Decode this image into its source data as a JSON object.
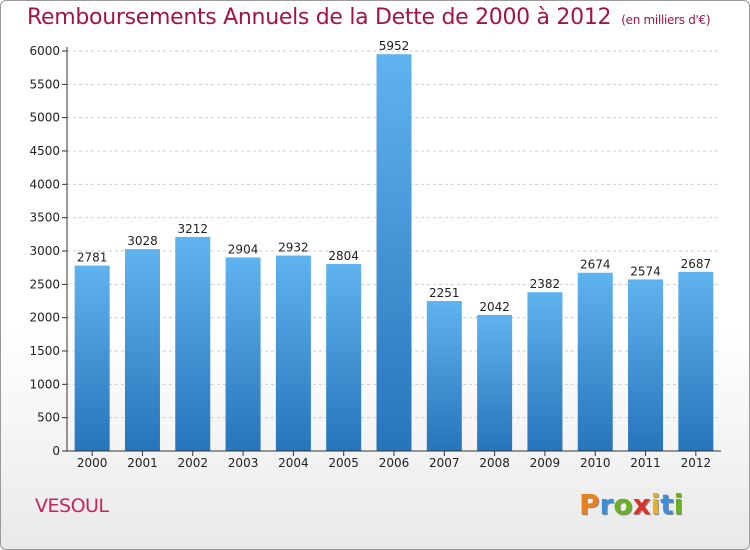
{
  "header": {
    "title": "Remboursements Annuels de la Dette de 2000 à 2012",
    "unit": "(en milliers d'€)"
  },
  "footer": {
    "city": "VESOUL",
    "logo_text": "Proxiti"
  },
  "colors": {
    "title": "#a0144e",
    "bar_top": "#5aaeea",
    "bar_bottom": "#2a78bf",
    "grid": "#cccccc"
  },
  "chart_data": {
    "type": "bar",
    "title": "Remboursements Annuels de la Dette de 2000 à 2012",
    "subtitle": "(en milliers d'€)",
    "categories": [
      "2000",
      "2001",
      "2002",
      "2003",
      "2004",
      "2005",
      "2006",
      "2007",
      "2008",
      "2009",
      "2010",
      "2011",
      "2012"
    ],
    "values": [
      2781,
      3028,
      3212,
      2904,
      2932,
      2804,
      5952,
      2251,
      2042,
      2382,
      2674,
      2574,
      2687
    ],
    "ylim": [
      0,
      6000
    ],
    "yticks": [
      0,
      500,
      1000,
      1500,
      2000,
      2500,
      3000,
      3500,
      4000,
      4500,
      5000,
      5500,
      6000
    ],
    "grid": true,
    "legend": "none"
  }
}
